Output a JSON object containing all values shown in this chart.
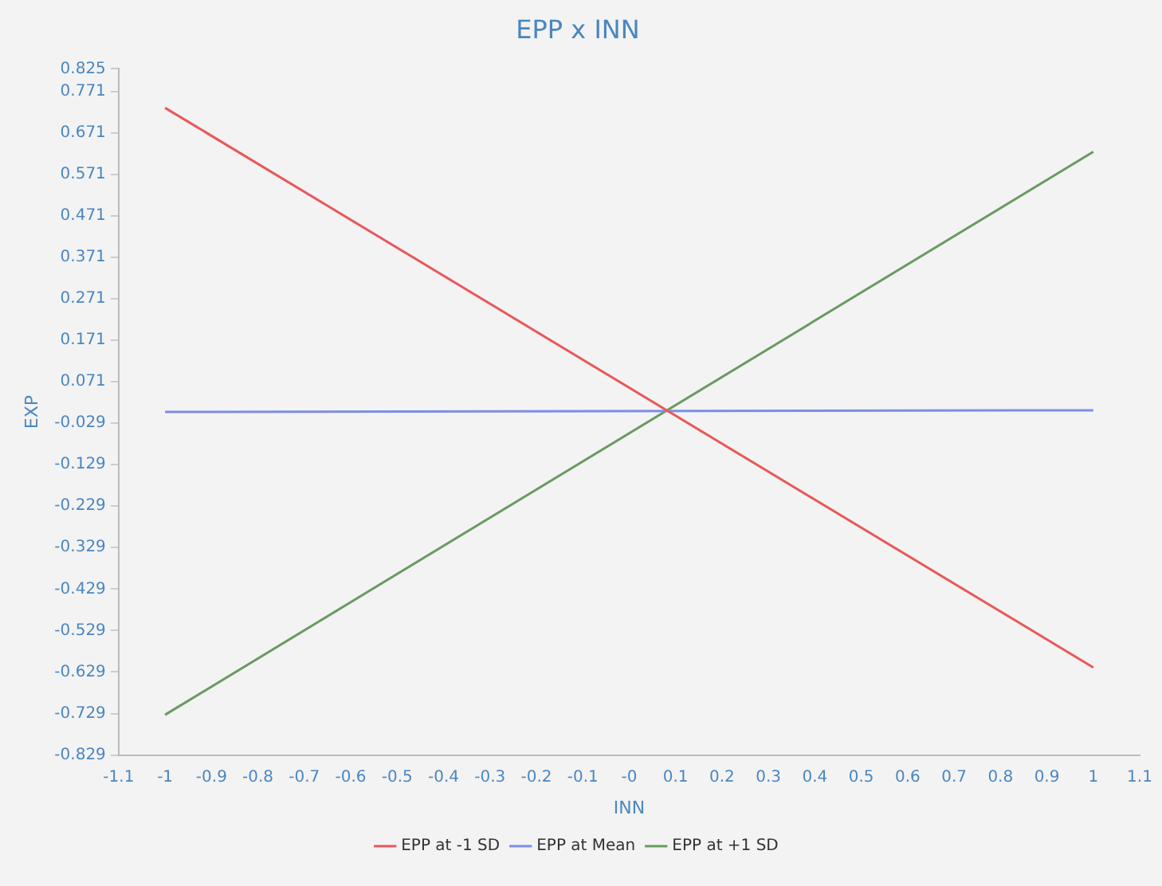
{
  "chart_data": {
    "type": "line",
    "title": "EPP x INN",
    "xlabel": "INN",
    "ylabel": "EXP",
    "x": [
      -1,
      1
    ],
    "series": [
      {
        "name": "EPP at -1 SD",
        "color": "#e8585a",
        "values": [
          0.731,
          -0.618
        ]
      },
      {
        "name": "EPP at Mean",
        "color": "#7b8de8",
        "values": [
          -0.002,
          0.002
        ]
      },
      {
        "name": "EPP at +1 SD",
        "color": "#6a9a62",
        "values": [
          -0.732,
          0.625
        ]
      }
    ],
    "xlim": [
      -1.1,
      1.1
    ],
    "xticks": [
      -1.1,
      -1,
      -0.9,
      -0.8,
      -0.7,
      -0.6,
      -0.5,
      -0.4,
      -0.3,
      -0.2,
      -0.1,
      {
        "value": 0,
        "label": "-0"
      },
      0.1,
      0.2,
      0.3,
      0.4,
      0.5,
      0.6,
      0.7,
      0.8,
      0.9,
      1,
      1.1
    ],
    "ylim": [
      -0.829,
      0.825
    ],
    "yticks": [
      -0.829,
      -0.729,
      -0.629,
      -0.529,
      -0.429,
      -0.329,
      -0.229,
      -0.129,
      -0.029,
      0.071,
      0.171,
      0.271,
      0.371,
      0.471,
      0.571,
      0.671,
      0.771,
      0.825
    ],
    "grid": false,
    "legend": "bottom",
    "marker": "none",
    "line_style": "solid"
  }
}
